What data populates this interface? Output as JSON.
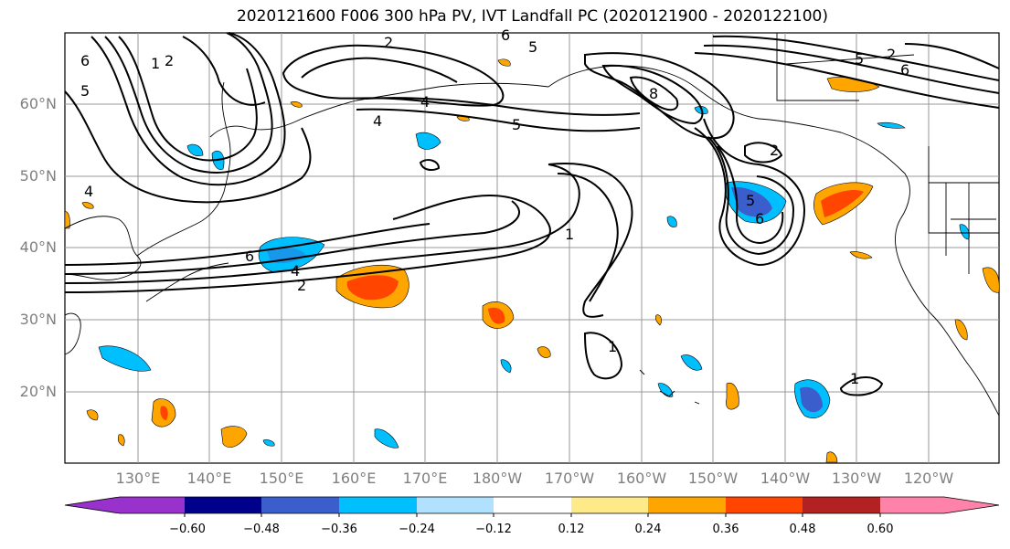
{
  "title": "2020121600 F006 300 hPa PV, IVT Landfall PC (2020121900 - 2020122100)",
  "lat_ticks": [
    "60°N",
    "50°N",
    "40°N",
    "30°N",
    "20°N"
  ],
  "lon_ticks": [
    "130°E",
    "140°E",
    "150°E",
    "160°E",
    "170°E",
    "180°W",
    "170°W",
    "160°W",
    "150°W",
    "140°W",
    "130°W",
    "120°W"
  ],
  "contour_labels": [
    "2",
    "1",
    "6",
    "5",
    "4",
    "2",
    "4",
    "5",
    "6",
    "4",
    "2",
    "1",
    "6",
    "5",
    "8",
    "2",
    "5",
    "6",
    "1",
    "1",
    "4",
    "2",
    "6",
    "5"
  ],
  "colorbar": {
    "colors": [
      "#9932cc",
      "#00008b",
      "#3a5fcd",
      "#00bfff",
      "#b0e2ff",
      "#ffffff",
      "#ffea8a",
      "#ffa500",
      "#ff4500",
      "#b22222",
      "#ff82ab"
    ],
    "ticks": [
      "−0.60",
      "−0.48",
      "−0.36",
      "−0.24",
      "−0.12",
      "0.12",
      "0.24",
      "0.36",
      "0.48",
      "0.60"
    ]
  }
}
